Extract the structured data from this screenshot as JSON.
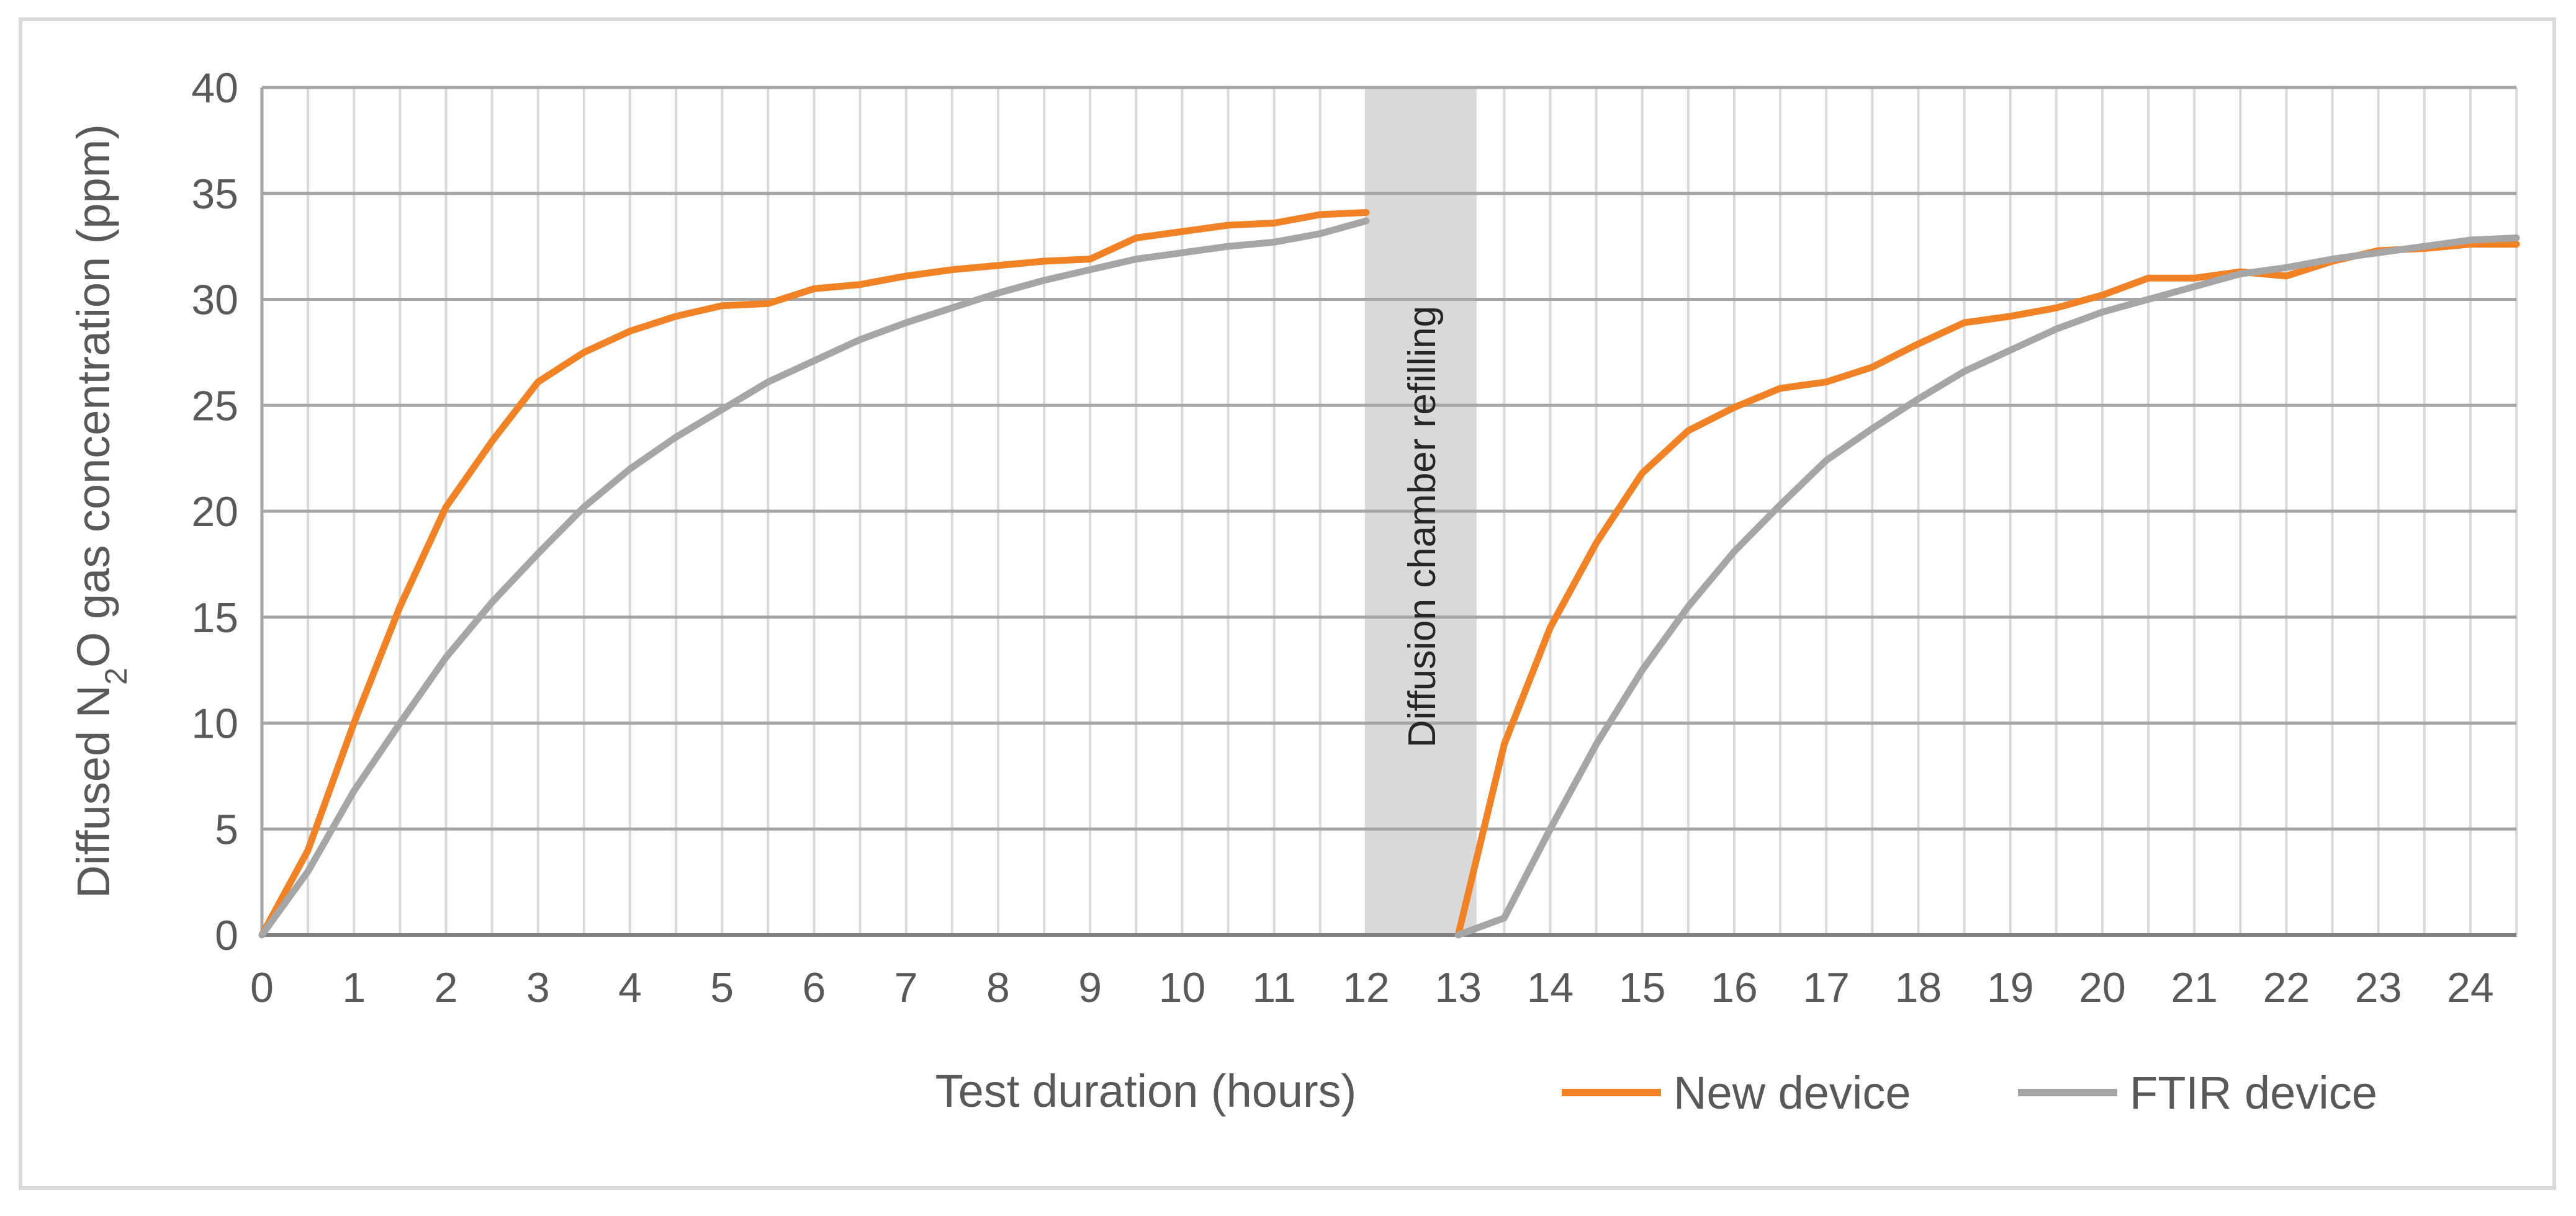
{
  "chart_data": {
    "type": "line",
    "xlabel": "Test duration (hours)",
    "ylabel_parts": [
      "Diffused N",
      "2",
      "O gas concentration (ppm)"
    ],
    "xlim": [
      0,
      24.5
    ],
    "ylim": [
      0,
      40
    ],
    "x_ticks": [
      0,
      1,
      2,
      3,
      4,
      5,
      6,
      7,
      8,
      9,
      10,
      11,
      12,
      13,
      14,
      15,
      16,
      17,
      18,
      19,
      20,
      21,
      22,
      23,
      24
    ],
    "y_ticks": [
      0,
      5,
      10,
      15,
      20,
      25,
      30,
      35,
      40
    ],
    "grid": true,
    "legend_position": "bottom-right",
    "shaded_region": {
      "x_start": 12,
      "x_end": 13.2,
      "label": "Diffusion chamber refilling",
      "color": "#d9d9d9"
    },
    "series": [
      {
        "name": "New device",
        "color": "#f28226",
        "segments": [
          {
            "x": [
              0,
              0.5,
              1,
              1.5,
              2,
              2.5,
              3,
              3.5,
              4,
              4.5,
              5,
              5.5,
              6,
              6.5,
              7,
              7.5,
              8,
              8.5,
              9,
              9.5,
              10,
              10.5,
              11,
              11.5,
              12
            ],
            "y": [
              0,
              4,
              10,
              15.5,
              20.2,
              23.3,
              26.1,
              27.5,
              28.5,
              29.2,
              29.7,
              29.8,
              30.5,
              30.7,
              31.1,
              31.4,
              31.6,
              31.8,
              31.9,
              32.9,
              33.2,
              33.5,
              33.6,
              34,
              34.1
            ]
          },
          {
            "x": [
              13,
              13.5,
              14,
              14.5,
              15,
              15.5,
              16,
              16.5,
              17,
              17.5,
              18,
              18.5,
              19,
              19.5,
              20,
              20.5,
              21,
              21.5,
              22,
              22.5,
              23,
              23.5,
              24,
              24.5
            ],
            "y": [
              0,
              9,
              14.5,
              18.5,
              21.8,
              23.8,
              24.9,
              25.8,
              26.1,
              26.8,
              27.9,
              28.9,
              29.2,
              29.6,
              30.2,
              31,
              31,
              31.3,
              31.1,
              31.8,
              32.3,
              32.4,
              32.6,
              32.6
            ]
          }
        ]
      },
      {
        "name": "FTIR device",
        "color": "#a6a6a6",
        "segments": [
          {
            "x": [
              0,
              0.5,
              1,
              1.5,
              2,
              2.5,
              3,
              3.5,
              4,
              4.5,
              5,
              5.5,
              6,
              6.5,
              7,
              7.5,
              8,
              8.5,
              9,
              9.5,
              10,
              10.5,
              11,
              11.5,
              12
            ],
            "y": [
              0,
              3,
              6.8,
              10,
              13.1,
              15.7,
              18,
              20.2,
              22,
              23.5,
              24.8,
              26.1,
              27.1,
              28.1,
              28.9,
              29.6,
              30.3,
              30.9,
              31.4,
              31.9,
              32.2,
              32.5,
              32.7,
              33.1,
              33.7
            ]
          },
          {
            "x": [
              13,
              13.5,
              14,
              14.5,
              15,
              15.5,
              16,
              16.5,
              17,
              17.5,
              18,
              18.5,
              19,
              19.5,
              20,
              20.5,
              21,
              21.5,
              22,
              22.5,
              23,
              23.5,
              24,
              24.5
            ],
            "y": [
              0,
              0.8,
              5,
              9,
              12.5,
              15.5,
              18.1,
              20.3,
              22.4,
              23.9,
              25.3,
              26.6,
              27.6,
              28.6,
              29.4,
              30,
              30.6,
              31.2,
              31.5,
              31.9,
              32.2,
              32.5,
              32.8,
              32.9
            ]
          }
        ]
      }
    ]
  }
}
